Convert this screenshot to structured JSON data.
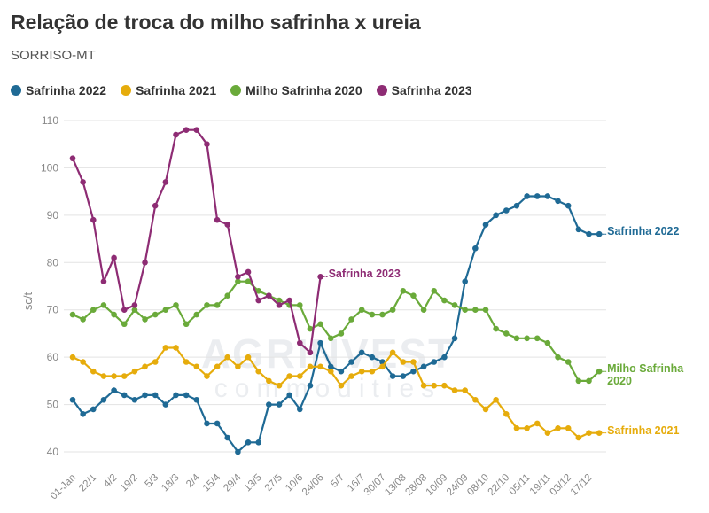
{
  "chart_data": {
    "type": "line",
    "title": "Relação de troca do milho safrinha x ureia",
    "subtitle": "SORRISO-MT",
    "y_label": "sc/t",
    "watermark": [
      "AGRINVEST",
      "commodities"
    ],
    "categories": [
      "01-Jan",
      null,
      "22/1",
      null,
      "4/2",
      null,
      "19/2",
      null,
      "5/3",
      null,
      "18/3",
      null,
      "2/4",
      null,
      "15/4",
      null,
      "29/4",
      null,
      "13/5",
      null,
      "27/5",
      null,
      "10/6",
      null,
      "24/06",
      null,
      "5/7",
      null,
      "16/7",
      null,
      "30/07",
      null,
      "13/08",
      null,
      "28/08",
      null,
      "10/09",
      null,
      "24/09",
      null,
      "08/10",
      null,
      "22/10",
      null,
      "05/11",
      null,
      "19/11",
      null,
      "03/12",
      null,
      "17/12",
      null
    ],
    "ylim": [
      36,
      112
    ],
    "yticks": [
      40,
      50,
      60,
      70,
      80,
      90,
      100,
      110
    ],
    "grid": true,
    "series": [
      {
        "name": "Safrinha 2022",
        "color": "#1f6a95",
        "values": [
          51,
          48,
          49,
          51,
          53,
          52,
          51,
          52,
          52,
          50,
          52,
          52,
          51,
          46,
          46,
          43,
          40,
          42,
          42,
          50,
          50,
          52,
          49,
          54,
          63,
          58,
          57,
          59,
          61,
          60,
          59,
          56,
          56,
          57,
          58,
          59,
          60,
          64,
          76,
          83,
          88,
          90,
          91,
          92,
          94,
          94,
          94,
          93,
          92,
          87,
          86,
          86
        ]
      },
      {
        "name": "Safrinha 2021",
        "color": "#e6ac0c",
        "values": [
          60,
          59,
          57,
          56,
          56,
          56,
          57,
          58,
          59,
          62,
          62,
          59,
          58,
          56,
          58,
          60,
          58,
          60,
          57,
          55,
          54,
          56,
          56,
          58,
          58,
          57,
          54,
          56,
          57,
          57,
          58,
          61,
          59,
          59,
          54,
          54,
          54,
          53,
          53,
          51,
          49,
          51,
          48,
          45,
          45,
          46,
          44,
          45,
          45,
          43,
          44,
          44
        ]
      },
      {
        "name": "Milho Safrinha 2020",
        "color": "#6aaa3a",
        "values": [
          69,
          68,
          70,
          71,
          69,
          67,
          70,
          68,
          69,
          70,
          71,
          67,
          69,
          71,
          71,
          73,
          76,
          76,
          74,
          73,
          72,
          71,
          71,
          66,
          67,
          64,
          65,
          68,
          70,
          69,
          69,
          70,
          74,
          73,
          70,
          74,
          72,
          71,
          70,
          70,
          70,
          66,
          65,
          64,
          64,
          64,
          63,
          60,
          59,
          55,
          55,
          57
        ]
      },
      {
        "name": "Safrinha 2023",
        "color": "#8e2c74",
        "values": [
          102,
          97,
          89,
          76,
          81,
          70,
          71,
          80,
          92,
          97,
          107,
          108,
          108,
          105,
          89,
          88,
          77,
          78,
          72,
          73,
          71,
          72,
          63,
          61,
          77,
          null,
          null,
          null,
          null,
          null,
          null,
          null,
          null,
          null,
          null,
          null,
          null,
          null,
          null,
          null,
          null,
          null,
          null,
          null,
          null,
          null,
          null,
          null,
          null,
          null,
          null,
          null
        ]
      }
    ]
  }
}
